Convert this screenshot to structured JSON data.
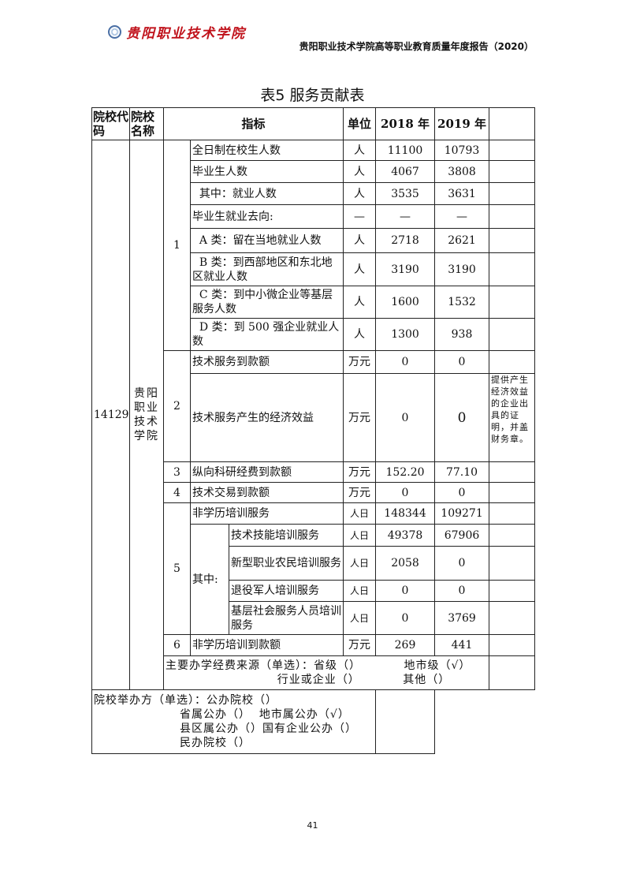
{
  "header": {
    "logo_text": "贵阳职业技术学院",
    "running_title": "贵阳职业技术学院高等职业教育质量年度报告（2020）"
  },
  "table_title": "表5 服务贡献表",
  "columns": {
    "code": "院校代码",
    "name": "院校名称",
    "indicator": "指标",
    "unit": "单位",
    "y2018": "2018 年",
    "y2019": "2019 年"
  },
  "school": {
    "code": "14129",
    "name": "贵阳职业技术学院"
  },
  "section1": {
    "no": "1",
    "rows": [
      {
        "label": "全日制在校生人数",
        "unit": "人",
        "y2018": "11100",
        "y2019": "10793"
      },
      {
        "label": "毕业生人数",
        "unit": "人",
        "y2018": "4067",
        "y2019": "3808"
      },
      {
        "label": "  其中：就业人数",
        "unit": "人",
        "y2018": "3535",
        "y2019": "3631"
      },
      {
        "label": "毕业生就业去向:",
        "unit": "—",
        "y2018": "—",
        "y2019": "—"
      },
      {
        "label": "  A 类：留在当地就业人数",
        "unit": "人",
        "y2018": "2718",
        "y2019": "2621"
      },
      {
        "label": "  B 类：到西部地区和东北地区就业人数",
        "unit": "人",
        "y2018": "3190",
        "y2019": "3190"
      },
      {
        "label": "  C 类：到中小微企业等基层服务人数",
        "unit": "人",
        "y2018": "1600",
        "y2019": "1532"
      },
      {
        "label": "  D 类：到 500 强企业就业人数",
        "unit": "人",
        "y2018": "1300",
        "y2019": "938"
      }
    ]
  },
  "section2": {
    "no": "2",
    "rows": [
      {
        "label": "技术服务到款额",
        "unit": "万元",
        "y2018": "0",
        "y2019": "0"
      },
      {
        "label": "技术服务产生的经济效益",
        "unit": "万元",
        "y2018": "0",
        "y2019": "0",
        "note": "提供产生经济效益的企业出具的证明，并盖财务章。"
      }
    ]
  },
  "section3": {
    "no": "3",
    "label": "纵向科研经费到款额",
    "unit": "万元",
    "y2018": "152.20",
    "y2019": "77.10"
  },
  "section4": {
    "no": "4",
    "label": "技术交易到款额",
    "unit": "万元",
    "y2018": "0",
    "y2019": "0"
  },
  "section5": {
    "no": "5",
    "total": {
      "label": "非学历培训服务",
      "unit": "人日",
      "y2018": "148344",
      "y2019": "109271"
    },
    "sub_label": "其中:",
    "rows": [
      {
        "label": "技术技能培训服务",
        "unit": "人日",
        "y2018": "49378",
        "y2019": "67906"
      },
      {
        "label": "新型职业农民培训服务",
        "unit": "人日",
        "y2018": "2058",
        "y2019": "0"
      },
      {
        "label": "退役军人培训服务",
        "unit": "人日",
        "y2018": "0",
        "y2019": "0"
      },
      {
        "label": "基层社会服务人员培训服务",
        "unit": "人日",
        "y2018": "0",
        "y2019": "3769"
      }
    ]
  },
  "section6": {
    "no": "6",
    "label": "非学历培训到款额",
    "unit": "万元",
    "y2018": "269",
    "y2019": "441"
  },
  "funding": {
    "line1": "主要办学经费来源（单选）：省级（）          地市级（√）",
    "line2": "                          行业或企业（）          其他（）"
  },
  "sponsor": {
    "line1": "院校举办方（单选）：公办院校（）",
    "line2": "                    省属公办（）  地市属公办（√）",
    "line3": "                    县区属公办（）国有企业公办（）",
    "line4": "                    民办院校（）"
  },
  "page_number": "41"
}
